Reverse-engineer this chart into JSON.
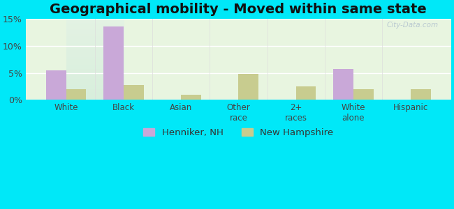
{
  "title": "Geographical mobility - Moved within same state",
  "categories": [
    "White",
    "Black",
    "Asian",
    "Other\nrace",
    "2+\nraces",
    "White\nalone",
    "Hispanic"
  ],
  "henniker_values": [
    5.5,
    13.7,
    0.0,
    0.0,
    0.0,
    5.7,
    0.0
  ],
  "nh_values": [
    2.0,
    2.7,
    1.0,
    4.8,
    2.5,
    2.0,
    2.0
  ],
  "henniker_color": "#c9a8d8",
  "nh_color": "#c8cc8f",
  "background_top": "#d4ede0",
  "background_bottom": "#e8f5e0",
  "outer_background": "#00e8f8",
  "ylim": [
    0,
    15
  ],
  "yticks": [
    0,
    5,
    10,
    15
  ],
  "ytick_labels": [
    "0%",
    "5%",
    "10%",
    "15%"
  ],
  "bar_width": 0.35,
  "legend_henniker": "Henniker, NH",
  "legend_nh": "New Hampshire",
  "watermark": "City-Data.com",
  "title_fontsize": 14,
  "tick_fontsize": 9,
  "xlabel_fontsize": 8.5
}
